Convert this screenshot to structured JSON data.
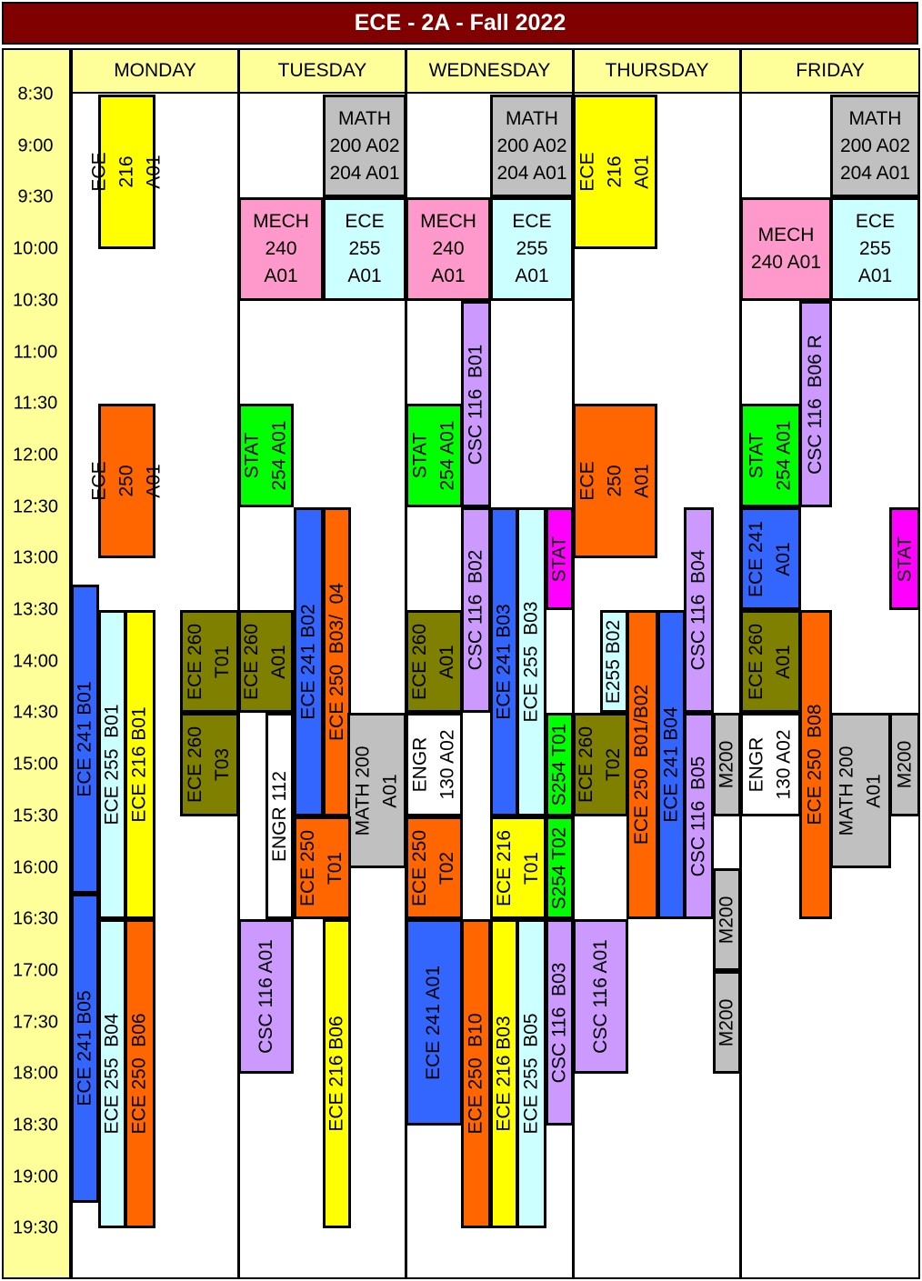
{
  "title": "ECE - 2A - Fall 2022",
  "days": [
    "MONDAY",
    "TUESDAY",
    "WEDNESDAY",
    "THURSDAY",
    "FRIDAY"
  ],
  "times": [
    "8:30",
    "9:00",
    "9:30",
    "10:00",
    "10:30",
    "11:00",
    "11:30",
    "12:00",
    "12:30",
    "13:00",
    "13:30",
    "14:00",
    "14:30",
    "15:00",
    "15:30",
    "16:00",
    "16:30",
    "17:00",
    "17:30",
    "18:00",
    "18:30",
    "19:00",
    "19:30"
  ],
  "colors": {
    "yellow": "#ffff00",
    "orange": "#ff6600",
    "blue": "#3366ff",
    "cyan": "#ccffff",
    "olive": "#808000",
    "gray": "#c0c0c0",
    "pink": "#ff99cc",
    "purple": "#cc99ff",
    "green": "#00ff00",
    "magenta": "#ff00ff",
    "white": "#ffffff",
    "title_bg": "#800000",
    "header_bg": "#ffff99"
  },
  "events": [
    {
      "name": "ece-216-a01-mon",
      "label": "ECE\n216\nA01",
      "day": 0,
      "start": "8:30",
      "end": "10:00",
      "color": "yellow"
    },
    {
      "name": "ece-250-a01-mon",
      "label": "ECE\n250\nA01",
      "day": 0,
      "start": "11:30",
      "end": "13:00",
      "color": "orange"
    },
    {
      "name": "ece-241-b01-mon",
      "label": "ECE 241 B01",
      "day": 0,
      "start": "13:15",
      "end": "16:15",
      "color": "blue"
    },
    {
      "name": "ece-255-b01-mon",
      "label": "ECE 255  B01",
      "day": 0,
      "start": "13:30",
      "end": "16:30",
      "color": "cyan"
    },
    {
      "name": "ece-216-b01-mon",
      "label": "ECE 216 B01",
      "day": 0,
      "start": "13:30",
      "end": "16:30",
      "color": "yellow"
    },
    {
      "name": "ece-260-t01-mon",
      "label": "ECE 260\nT01",
      "day": 0,
      "start": "13:30",
      "end": "14:30",
      "color": "olive"
    },
    {
      "name": "ece-260-t03-mon",
      "label": "ECE 260\nT03",
      "day": 0,
      "start": "14:30",
      "end": "15:30",
      "color": "olive"
    },
    {
      "name": "ece-241-b05-mon",
      "label": "ECE 241 B05",
      "day": 0,
      "start": "16:15",
      "end": "19:15",
      "color": "blue"
    },
    {
      "name": "ece-255-b04-mon",
      "label": "ECE 255  B04",
      "day": 0,
      "start": "16:30",
      "end": "19:30",
      "color": "cyan"
    },
    {
      "name": "ece-250-b06-mon",
      "label": "ECE 250  B06",
      "day": 0,
      "start": "16:30",
      "end": "19:30",
      "color": "orange"
    },
    {
      "name": "math-200-tue",
      "label": "MATH\n200 A02\n204 A01",
      "day": 1,
      "start": "8:30",
      "end": "9:30",
      "color": "gray"
    },
    {
      "name": "mech-240-a01-tue",
      "label": "MECH\n240\nA01",
      "day": 1,
      "start": "9:30",
      "end": "10:30",
      "color": "pink"
    },
    {
      "name": "ece-255-a01-tue",
      "label": "ECE\n255\nA01",
      "day": 1,
      "start": "9:30",
      "end": "10:30",
      "color": "cyan"
    },
    {
      "name": "stat-254-a01-tue",
      "label": "STAT\n254 A01",
      "day": 1,
      "start": "11:30",
      "end": "12:30",
      "color": "green"
    },
    {
      "name": "ece-241-b02-tue",
      "label": "ECE 241 B02",
      "day": 1,
      "start": "12:30",
      "end": "15:30",
      "color": "blue"
    },
    {
      "name": "ece-250-b03-tue",
      "label": "ECE 250  B03/  04",
      "day": 1,
      "start": "12:30",
      "end": "15:30",
      "color": "orange"
    },
    {
      "name": "ece-260-a01-tue",
      "label": "ECE 260\nA01",
      "day": 1,
      "start": "13:30",
      "end": "14:30",
      "color": "olive"
    },
    {
      "name": "engr-112-tue",
      "label": "ENGR 112",
      "day": 1,
      "start": "14:30",
      "end": "16:30",
      "color": "white"
    },
    {
      "name": "math-200-a01-tue",
      "label": "MATH 200\nA01",
      "day": 1,
      "start": "14:30",
      "end": "16:00",
      "color": "gray"
    },
    {
      "name": "ece-250-t01-tue",
      "label": "ECE 250\nT01",
      "day": 1,
      "start": "15:30",
      "end": "16:30",
      "color": "orange"
    },
    {
      "name": "csc-116-a01-tue",
      "label": "CSC 116 A01",
      "day": 1,
      "start": "16:30",
      "end": "18:00",
      "color": "purple"
    },
    {
      "name": "ece-216-b06-tue",
      "label": "ECE 216 B06",
      "day": 1,
      "start": "16:30",
      "end": "19:30",
      "color": "yellow"
    },
    {
      "name": "math-200-wed",
      "label": "MATH\n200 A02\n204 A01",
      "day": 2,
      "start": "8:30",
      "end": "9:30",
      "color": "gray"
    },
    {
      "name": "mech-240-a01-wed",
      "label": "MECH\n240\nA01",
      "day": 2,
      "start": "9:30",
      "end": "10:30",
      "color": "pink"
    },
    {
      "name": "ece-255-a01-wed",
      "label": "ECE\n255\nA01",
      "day": 2,
      "start": "9:30",
      "end": "10:30",
      "color": "cyan"
    },
    {
      "name": "csc-116-b01-wed",
      "label": "CSC 116  B01",
      "day": 2,
      "start": "10:30",
      "end": "12:30",
      "color": "purple"
    },
    {
      "name": "stat-254-a01-wed",
      "label": "STAT\n254 A01",
      "day": 2,
      "start": "11:30",
      "end": "12:30",
      "color": "green"
    },
    {
      "name": "csc-116-b02-wed",
      "label": "CSC 116  B02",
      "day": 2,
      "start": "12:30",
      "end": "14:30",
      "color": "purple"
    },
    {
      "name": "ece-241-b03-wed",
      "label": "ECE 241 B03",
      "day": 2,
      "start": "12:30",
      "end": "15:30",
      "color": "blue"
    },
    {
      "name": "ece-255-b03-wed",
      "label": "ECE 255  B03",
      "day": 2,
      "start": "12:30",
      "end": "15:30",
      "color": "cyan"
    },
    {
      "name": "stat-wed",
      "label": "STAT",
      "day": 2,
      "start": "12:30",
      "end": "13:30",
      "color": "magenta"
    },
    {
      "name": "ece-260-a01-wed",
      "label": "ECE 260\nA01",
      "day": 2,
      "start": "13:30",
      "end": "14:30",
      "color": "olive"
    },
    {
      "name": "engr-130-a02-wed",
      "label": "ENGR\n130 A02",
      "day": 2,
      "start": "14:30",
      "end": "15:30",
      "color": "white"
    },
    {
      "name": "s254-t01-wed",
      "label": "S254 T01",
      "day": 2,
      "start": "14:30",
      "end": "15:30",
      "color": "green"
    },
    {
      "name": "ece-250-t02-wed",
      "label": "ECE 250\nT02",
      "day": 2,
      "start": "15:30",
      "end": "16:30",
      "color": "orange"
    },
    {
      "name": "ece-216-t01-wed",
      "label": "ECE 216\nT01",
      "day": 2,
      "start": "15:30",
      "end": "16:30",
      "color": "yellow"
    },
    {
      "name": "s254-t02-wed",
      "label": "S254 T02",
      "day": 2,
      "start": "15:30",
      "end": "16:30",
      "color": "green"
    },
    {
      "name": "ece-241-a01-wed",
      "label": "ECE 241 A01",
      "day": 2,
      "start": "16:30",
      "end": "18:30",
      "color": "blue"
    },
    {
      "name": "ece-250-b10-wed",
      "label": "ECE 250  B10",
      "day": 2,
      "start": "16:30",
      "end": "19:30",
      "color": "orange"
    },
    {
      "name": "ece-216-b03-wed",
      "label": "ECE 216 B03",
      "day": 2,
      "start": "16:30",
      "end": "19:30",
      "color": "yellow"
    },
    {
      "name": "ece-255-b05-wed",
      "label": "ECE 255  B05",
      "day": 2,
      "start": "16:30",
      "end": "19:30",
      "color": "cyan"
    },
    {
      "name": "csc-116-b03-wed",
      "label": "CSC 116  B03",
      "day": 2,
      "start": "16:30",
      "end": "18:30",
      "color": "purple"
    },
    {
      "name": "ece-216-a01-thu",
      "label": "ECE\n216\nA01",
      "day": 3,
      "start": "8:30",
      "end": "10:00",
      "color": "yellow"
    },
    {
      "name": "ece-250-a01-thu",
      "label": "ECE\n250\nA01",
      "day": 3,
      "start": "11:30",
      "end": "13:00",
      "color": "orange"
    },
    {
      "name": "csc-116-b04-thu",
      "label": "CSC 116  B04",
      "day": 3,
      "start": "12:30",
      "end": "14:30",
      "color": "purple"
    },
    {
      "name": "e255-b02-thu",
      "label": "E255 B02",
      "day": 3,
      "start": "13:30",
      "end": "14:30",
      "color": "cyan"
    },
    {
      "name": "ece-250-b01-b02-thu",
      "label": "ECE 250  B01/B02",
      "day": 3,
      "start": "13:30",
      "end": "16:30",
      "color": "orange"
    },
    {
      "name": "ece-241-b04-thu",
      "label": "ECE 241 B04",
      "day": 3,
      "start": "13:30",
      "end": "16:30",
      "color": "blue"
    },
    {
      "name": "ece-260-t02-thu",
      "label": "ECE 260\nT02",
      "day": 3,
      "start": "14:30",
      "end": "15:30",
      "color": "olive"
    },
    {
      "name": "csc-116-b05-thu",
      "label": "CSC 116  B05",
      "day": 3,
      "start": "14:30",
      "end": "16:30",
      "color": "purple"
    },
    {
      "name": "m200-thu-1",
      "label": "M200",
      "day": 3,
      "start": "14:30",
      "end": "15:30",
      "color": "gray"
    },
    {
      "name": "m200-thu-2",
      "label": "M200",
      "day": 3,
      "start": "16:00",
      "end": "17:00",
      "color": "gray"
    },
    {
      "name": "csc-116-a01-thu",
      "label": "CSC 116 A01",
      "day": 3,
      "start": "16:30",
      "end": "18:00",
      "color": "purple"
    },
    {
      "name": "m200-thu-3",
      "label": "M200",
      "day": 3,
      "start": "17:00",
      "end": "18:00",
      "color": "gray"
    },
    {
      "name": "math-200-fri",
      "label": "MATH\n200 A02\n204 A01",
      "day": 4,
      "start": "8:30",
      "end": "9:30",
      "color": "gray"
    },
    {
      "name": "mech-240-a01-fri",
      "label": "MECH\n240 A01",
      "day": 4,
      "start": "9:30",
      "end": "10:30",
      "color": "pink"
    },
    {
      "name": "ece-255-a01-fri",
      "label": "ECE\n255\nA01",
      "day": 4,
      "start": "9:30",
      "end": "10:30",
      "color": "cyan"
    },
    {
      "name": "csc-116-b06r-fri",
      "label": "CSC 116  B06 R",
      "day": 4,
      "start": "10:30",
      "end": "12:30",
      "color": "purple"
    },
    {
      "name": "stat-254-a01-fri",
      "label": "STAT\n254 A01",
      "day": 4,
      "start": "11:30",
      "end": "12:30",
      "color": "green"
    },
    {
      "name": "ece-241-a01-fri",
      "label": "ECE 241\nA01",
      "day": 4,
      "start": "12:30",
      "end": "13:30",
      "color": "blue"
    },
    {
      "name": "stat-fri",
      "label": "STAT",
      "day": 4,
      "start": "12:30",
      "end": "13:30",
      "color": "magenta"
    },
    {
      "name": "ece-260-a01-fri",
      "label": "ECE 260\nA01",
      "day": 4,
      "start": "13:30",
      "end": "14:30",
      "color": "olive"
    },
    {
      "name": "engr-130-a02-fri",
      "label": "ENGR\n130 A02",
      "day": 4,
      "start": "14:30",
      "end": "15:30",
      "color": "white"
    },
    {
      "name": "ece-250-b08-fri",
      "label": "ECE 250  B08",
      "day": 4,
      "start": "13:30",
      "end": "16:30",
      "color": "orange"
    },
    {
      "name": "math-200-a01-fri",
      "label": "MATH 200\nA01",
      "day": 4,
      "start": "14:30",
      "end": "16:00",
      "color": "gray"
    },
    {
      "name": "m200-fri",
      "label": "M200",
      "day": 4,
      "start": "14:30",
      "end": "15:30",
      "color": "gray"
    }
  ]
}
